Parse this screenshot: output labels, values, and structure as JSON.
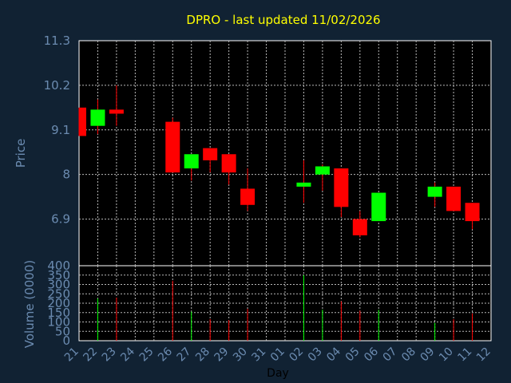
{
  "chart_data": {
    "type": "candlestick",
    "title": "DPRO - last updated 11/02/2026",
    "x_label": "Day",
    "price_panel": {
      "ylabel": "Price",
      "ylim": [
        5.75,
        11.3
      ],
      "yticks": [
        "11.3",
        "10.2",
        "9.1",
        "8",
        "6.9"
      ],
      "ytick_values": [
        11.3,
        10.2,
        9.1,
        8.0,
        6.9
      ]
    },
    "volume_panel": {
      "ylabel": "Volume (0000)",
      "ylim": [
        0,
        400
      ],
      "yticks": [
        "400",
        "350",
        "300",
        "250",
        "200",
        "150",
        "100",
        "50",
        "0"
      ],
      "ytick_values": [
        400,
        350,
        300,
        250,
        200,
        150,
        100,
        50,
        0
      ]
    },
    "x_ticks": [
      "21",
      "22",
      "23",
      "24",
      "25",
      "26",
      "27",
      "28",
      "29",
      "30",
      "31",
      "01",
      "02",
      "03",
      "04",
      "05",
      "06",
      "07",
      "08",
      "09",
      "10",
      "11",
      "12"
    ],
    "colors": {
      "up": "#00ff00",
      "down": "#ff0000",
      "wick": "#ff0000",
      "background": "#112233",
      "plot_background": "#000000",
      "grid": "#b8b8b8",
      "title": "#ffff00",
      "axis_text": "#6b8bb0"
    },
    "candles": [
      {
        "x": "21",
        "open": 9.65,
        "high": 9.65,
        "low": 8.95,
        "close": 8.95,
        "volume": 0
      },
      {
        "x": "22",
        "open": 9.2,
        "high": 9.85,
        "low": 9.0,
        "close": 9.6,
        "volume": 225
      },
      {
        "x": "23",
        "open": 9.6,
        "high": 10.2,
        "low": 9.2,
        "close": 9.5,
        "volume": 230
      },
      {
        "x": "26",
        "open": 9.3,
        "high": 9.4,
        "low": 8.05,
        "close": 8.05,
        "volume": 320
      },
      {
        "x": "27",
        "open": 8.15,
        "high": 8.5,
        "low": 7.85,
        "close": 8.5,
        "volume": 155
      },
      {
        "x": "28",
        "open": 8.65,
        "high": 8.65,
        "low": 8.05,
        "close": 8.35,
        "volume": 115
      },
      {
        "x": "29",
        "open": 8.5,
        "high": 8.5,
        "low": 7.75,
        "close": 8.05,
        "volume": 110
      },
      {
        "x": "30",
        "open": 7.65,
        "high": 8.15,
        "low": 7.1,
        "close": 7.25,
        "volume": 170
      },
      {
        "x": "02",
        "open": 7.7,
        "high": 8.35,
        "low": 7.3,
        "close": 7.8,
        "volume": 350
      },
      {
        "x": "03",
        "open": 8.0,
        "high": 8.25,
        "low": 7.6,
        "close": 8.2,
        "volume": 165
      },
      {
        "x": "04",
        "open": 8.15,
        "high": 8.15,
        "low": 6.95,
        "close": 7.2,
        "volume": 210
      },
      {
        "x": "05",
        "open": 6.9,
        "high": 7.1,
        "low": 6.45,
        "close": 6.5,
        "volume": 160
      },
      {
        "x": "06",
        "open": 6.85,
        "high": 7.55,
        "low": 6.85,
        "close": 7.55,
        "volume": 165
      },
      {
        "x": "09",
        "open": 7.45,
        "high": 7.8,
        "low": 7.2,
        "close": 7.7,
        "volume": 95
      },
      {
        "x": "10",
        "open": 7.7,
        "high": 7.7,
        "low": 7.1,
        "close": 7.1,
        "volume": 115
      },
      {
        "x": "11",
        "open": 7.3,
        "high": 7.3,
        "low": 6.65,
        "close": 6.85,
        "volume": 145
      }
    ]
  }
}
